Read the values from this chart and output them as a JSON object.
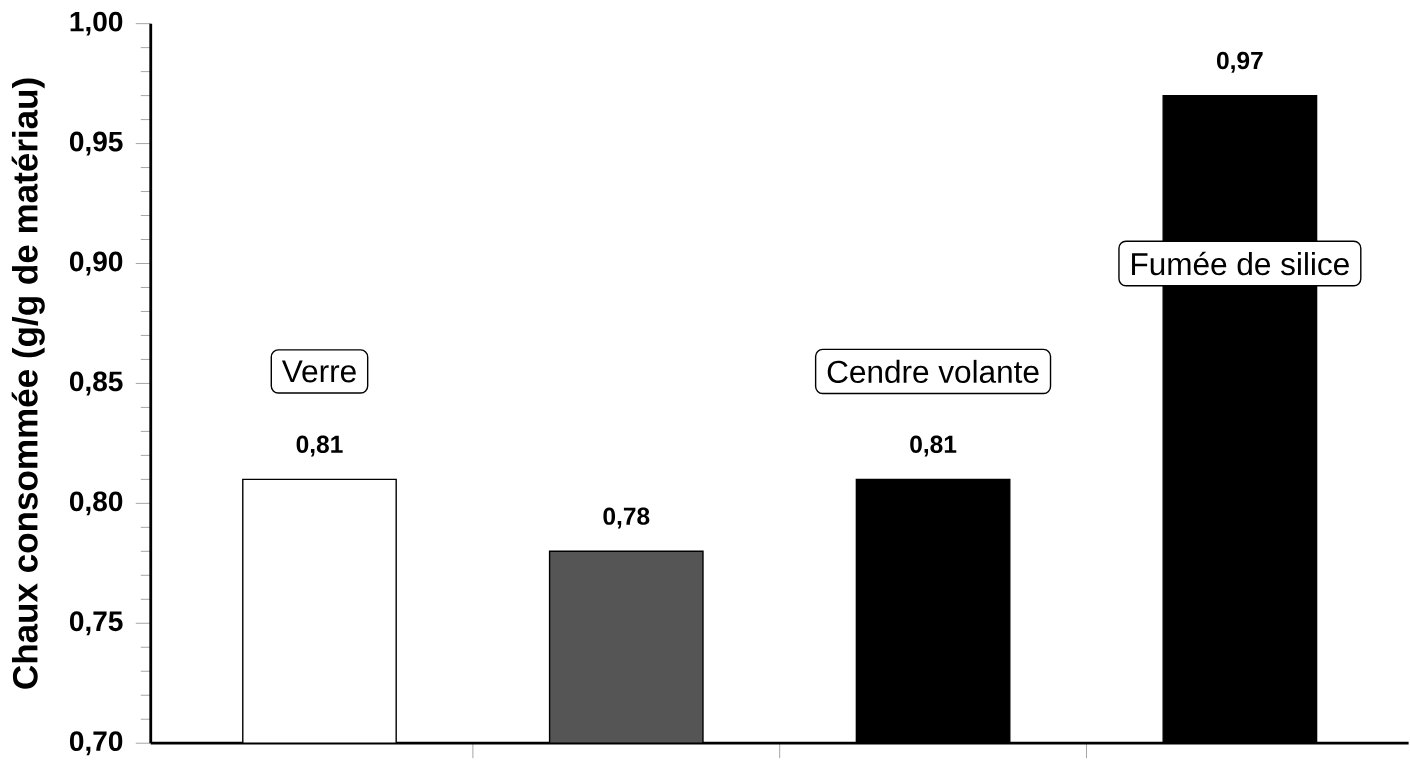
{
  "chart_data": {
    "type": "bar",
    "ylabel": "Chaux consommée (g/g de matériau)",
    "categories": [
      "Verre",
      null,
      "Cendre volante",
      "Fumée de silice"
    ],
    "values": [
      0.81,
      0.78,
      0.81,
      0.97
    ],
    "value_labels": [
      "0,81",
      "0,78",
      "0,81",
      "0,97"
    ],
    "colors": [
      "#ffffff",
      "#555555",
      "#000000",
      "#000000"
    ],
    "ylim": [
      0.7,
      1.0
    ],
    "yticks": [
      {
        "value": 0.7,
        "label": "0,70"
      },
      {
        "value": 0.75,
        "label": "0,75"
      },
      {
        "value": 0.8,
        "label": "0,80"
      },
      {
        "value": 0.85,
        "label": "0,85"
      },
      {
        "value": 0.9,
        "label": "0,90"
      },
      {
        "value": 0.95,
        "label": "0,95"
      },
      {
        "value": 1.0,
        "label": "1,00"
      }
    ]
  }
}
